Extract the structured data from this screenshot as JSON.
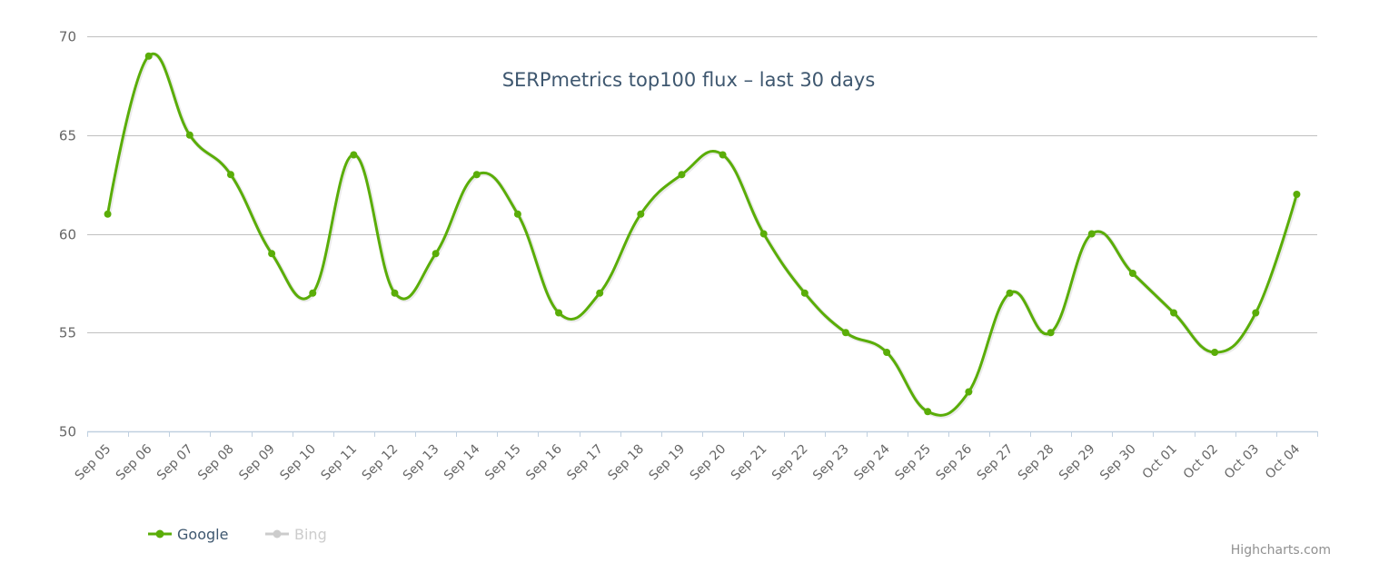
{
  "chart_data": {
    "type": "line",
    "title": "SERPmetrics top100 flux - last 30 days",
    "xlabel": "",
    "ylabel": "",
    "ylim": [
      50,
      70
    ],
    "yticks": [
      50,
      55,
      60,
      65,
      70
    ],
    "grid": true,
    "legend_position": "bottom-left",
    "categories": [
      "Sep 05",
      "Sep 06",
      "Sep 07",
      "Sep 08",
      "Sep 09",
      "Sep 10",
      "Sep 11",
      "Sep 12",
      "Sep 13",
      "Sep 14",
      "Sep 15",
      "Sep 16",
      "Sep 17",
      "Sep 18",
      "Sep 19",
      "Sep 20",
      "Sep 21",
      "Sep 22",
      "Sep 23",
      "Sep 24",
      "Sep 25",
      "Sep 26",
      "Sep 27",
      "Sep 28",
      "Sep 29",
      "Sep 30",
      "Oct 01",
      "Oct 02",
      "Oct 03",
      "Oct 04"
    ],
    "series": [
      {
        "name": "Google",
        "color": "#5aad08",
        "visible": true,
        "values": [
          61,
          69,
          65,
          63,
          59,
          57,
          64,
          57,
          59,
          63,
          61,
          56,
          57,
          61,
          63,
          64,
          60,
          57,
          55,
          54,
          51,
          52,
          57,
          55,
          60,
          58,
          56,
          54,
          56,
          62
        ]
      },
      {
        "name": "Bing",
        "color": "#cccccc",
        "visible": false,
        "values": []
      }
    ]
  },
  "title": "SERPmetrics top100 flux – last 30 days",
  "legend": {
    "items": [
      {
        "label": "Google",
        "color": "#5aad08",
        "text_color": "#3e576f"
      },
      {
        "label": "Bing",
        "color": "#cccccc",
        "text_color": "#cccccc"
      }
    ]
  },
  "credits": "Highcharts.com",
  "colors": {
    "grid": "#c0c0c0",
    "axis": "#c0d0e0",
    "label": "#666666",
    "title": "#3e576f"
  }
}
